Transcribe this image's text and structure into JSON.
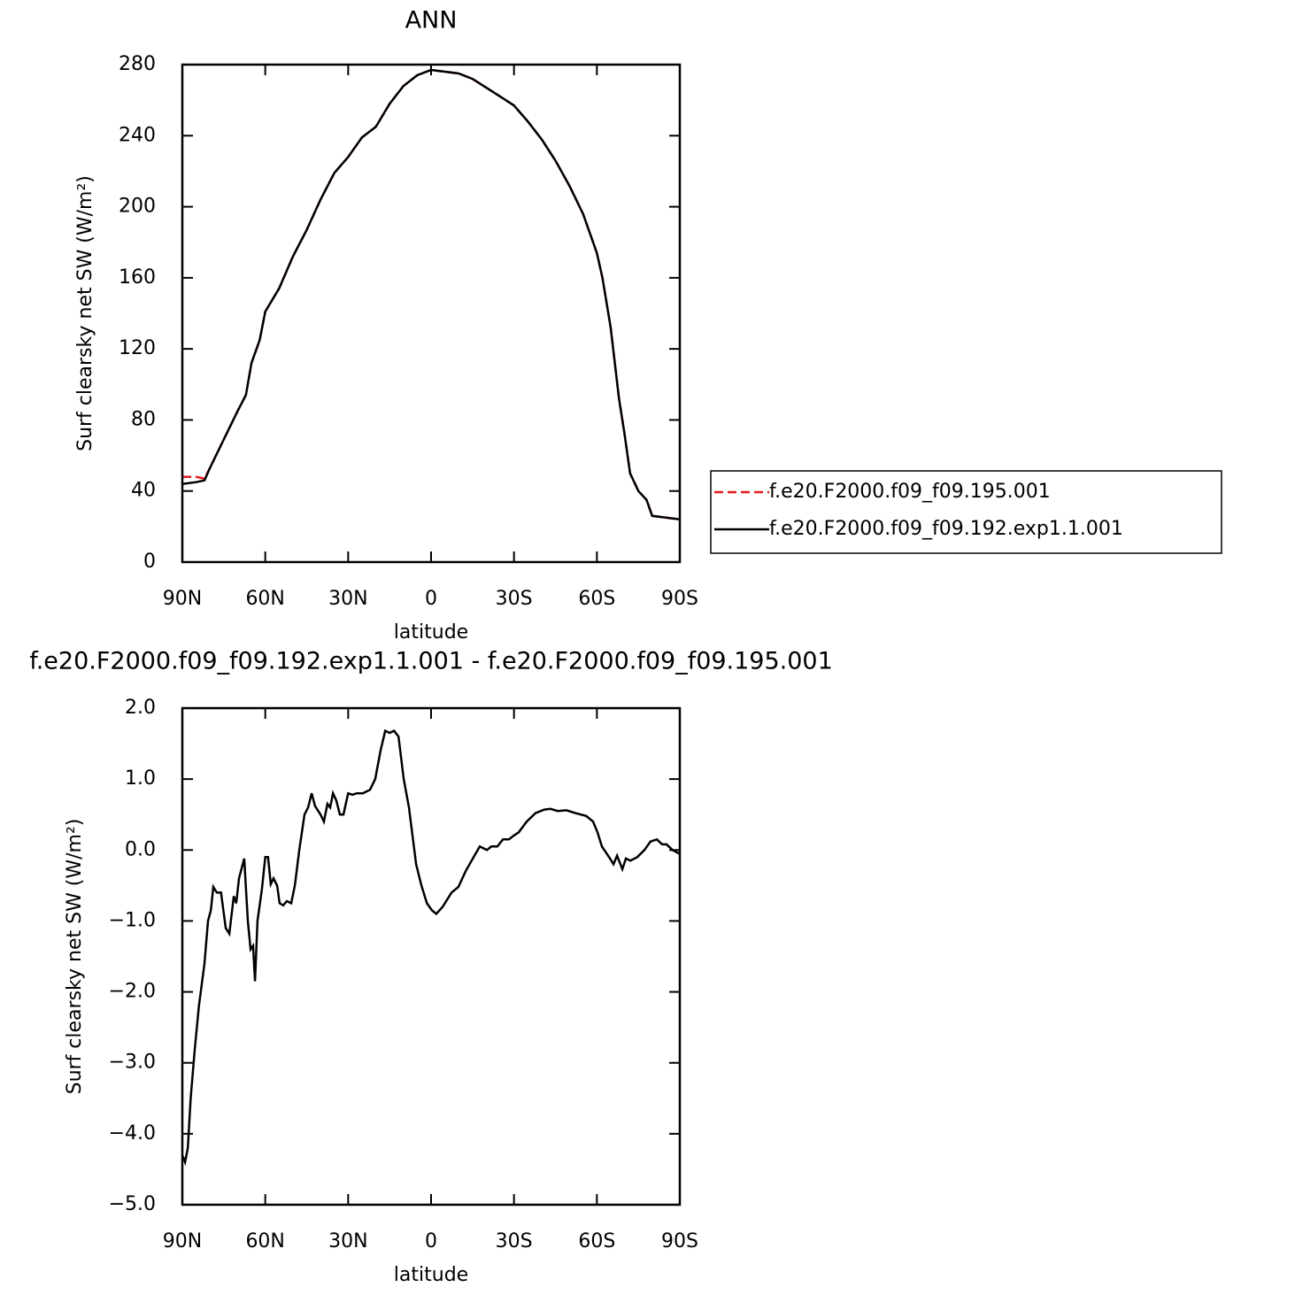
{
  "chart_data": [
    {
      "type": "line",
      "title": "ANN",
      "xlabel": "latitude",
      "ylabel": "Surf clearsky net SW (W/m²)",
      "x": [
        90,
        85,
        82,
        80,
        75,
        70,
        67,
        65,
        62,
        60,
        55,
        50,
        45,
        40,
        35,
        30,
        25,
        20,
        15,
        10,
        5,
        0,
        -5,
        -10,
        -15,
        -20,
        -25,
        -30,
        -35,
        -40,
        -45,
        -50,
        -55,
        -60,
        -62,
        -65,
        -68,
        -70,
        -72,
        -75,
        -78,
        -80,
        -85,
        -90
      ],
      "series": [
        {
          "name": "f.e20.F2000.f09_f09.195.001",
          "color": "#e41a1c",
          "linestyle": "dashed",
          "values": [
            48,
            48,
            47,
            53,
            69,
            85,
            94,
            112,
            125,
            141,
            154,
            172,
            187,
            204,
            219,
            228,
            239,
            245,
            258,
            268,
            274,
            277,
            276,
            275,
            272,
            267,
            262,
            257,
            248,
            238,
            226,
            212,
            196,
            174,
            160,
            132,
            92,
            72,
            50,
            40,
            35,
            26,
            25,
            24
          ]
        },
        {
          "name": "f.e20.F2000.f09_f09.192.exp1.1.001",
          "color": "#000000",
          "linestyle": "solid",
          "values": [
            44,
            45,
            46,
            53,
            69,
            85,
            94,
            112,
            125,
            141,
            154,
            172,
            187,
            204,
            219,
            228,
            239,
            245,
            258,
            268,
            274,
            277,
            276,
            275,
            272,
            267,
            262,
            257,
            248,
            238,
            226,
            212,
            196,
            174,
            160,
            132,
            92,
            72,
            50,
            40,
            35,
            26,
            25,
            24
          ]
        }
      ],
      "xlim": [
        90,
        -90
      ],
      "xticks": [
        {
          "value": 90,
          "label": "90N"
        },
        {
          "value": 60,
          "label": "60N"
        },
        {
          "value": 30,
          "label": "30N"
        },
        0,
        {
          "value": -30,
          "label": "30S"
        },
        {
          "value": -60,
          "label": "60S"
        },
        {
          "value": -90,
          "label": "90S"
        }
      ],
      "ylim": [
        0,
        280
      ],
      "yticks": [
        0,
        40,
        80,
        120,
        160,
        200,
        240,
        280
      ],
      "legend": "right"
    },
    {
      "type": "line",
      "title": "f.e20.F2000.f09_f09.192.exp1.1.001 - f.e20.F2000.f09_f09.195.001",
      "xlabel": "latitude",
      "ylabel": "Surf clearsky net SW (W/m²)",
      "x": [
        90,
        89,
        88,
        87,
        85.5,
        84,
        82,
        80.7,
        79.7,
        78.8,
        77.5,
        76,
        74.3,
        73,
        71.4,
        70.5,
        69.5,
        67.6,
        66.3,
        65.3,
        64.4,
        63.7,
        62.8,
        61.2,
        60,
        59,
        58,
        57,
        55.7,
        54.8,
        53.5,
        52.2,
        50.6,
        49.3,
        47.7,
        45.8,
        44.5,
        43.2,
        42,
        40,
        38.8,
        37.5,
        36.5,
        35.5,
        34.3,
        33,
        31.7,
        30,
        28.5,
        26.9,
        24.7,
        22.1,
        20.2,
        18.3,
        16.6,
        15,
        13.4,
        11.8,
        9.9,
        8,
        5.4,
        3.5,
        1.5,
        -0.3,
        -1.9,
        -4.2,
        -7.4,
        -9.9,
        -12.5,
        -15.4,
        -17.6,
        -20.2,
        -21.8,
        -24,
        -26,
        -28.2,
        -29.8,
        -31.7,
        -34.6,
        -37.8,
        -41,
        -43.2,
        -45.8,
        -49,
        -52.2,
        -56.1,
        -58.6,
        -60.2,
        -61.8,
        -64.4,
        -66,
        -67.3,
        -69.2,
        -70.5,
        -72.1,
        -74.6,
        -77.2,
        -79.4,
        -81.7,
        -83.6,
        -85.2,
        -87.4,
        -89.7
      ],
      "series": [
        {
          "color": "#000000",
          "linestyle": "solid",
          "values": [
            -4.3,
            -4.4,
            -4.2,
            -3.5,
            -2.8,
            -2.2,
            -1.6,
            -1.0,
            -0.85,
            -0.52,
            -0.6,
            -0.6,
            -1.1,
            -1.18,
            -0.65,
            -0.75,
            -0.4,
            -0.12,
            -1.0,
            -1.4,
            -1.35,
            -1.85,
            -1.0,
            -0.55,
            -0.1,
            -0.1,
            -0.48,
            -0.4,
            -0.5,
            -0.75,
            -0.78,
            -0.72,
            -0.75,
            -0.5,
            0.0,
            0.5,
            0.6,
            0.8,
            0.62,
            0.5,
            0.4,
            0.65,
            0.6,
            0.8,
            0.7,
            0.5,
            0.5,
            0.8,
            0.78,
            0.8,
            0.8,
            0.85,
            1.0,
            1.4,
            1.68,
            1.65,
            1.68,
            1.6,
            1.0,
            0.6,
            -0.2,
            -0.5,
            -0.75,
            -0.85,
            -0.9,
            -0.8,
            -0.6,
            -0.52,
            -0.3,
            -0.1,
            0.05,
            0.0,
            0.05,
            0.05,
            0.15,
            0.15,
            0.2,
            0.25,
            0.4,
            0.52,
            0.57,
            0.58,
            0.55,
            0.56,
            0.52,
            0.48,
            0.4,
            0.25,
            0.05,
            -0.1,
            -0.2,
            -0.08,
            -0.27,
            -0.12,
            -0.15,
            -0.1,
            0.0,
            0.12,
            0.15,
            0.08,
            0.08,
            0.0,
            -0.05
          ]
        }
      ],
      "xlim": [
        90,
        -90
      ],
      "xticks": [
        {
          "value": 90,
          "label": "90N"
        },
        {
          "value": 60,
          "label": "60N"
        },
        {
          "value": 30,
          "label": "30N"
        },
        0,
        {
          "value": -30,
          "label": "30S"
        },
        {
          "value": -60,
          "label": "60S"
        },
        {
          "value": -90,
          "label": "90S"
        }
      ],
      "ylim": [
        -5,
        2
      ],
      "yticks": [
        {
          "value": 2,
          "label": "2.0"
        },
        {
          "value": 1,
          "label": "1.0"
        },
        {
          "value": 0,
          "label": "0.0"
        },
        {
          "value": -1,
          "label": "−1.0"
        },
        {
          "value": -2,
          "label": "−2.0"
        },
        {
          "value": -3,
          "label": "−3.0"
        },
        {
          "value": -4,
          "label": "−4.0"
        },
        {
          "value": -5,
          "label": "−5.0"
        }
      ]
    }
  ]
}
